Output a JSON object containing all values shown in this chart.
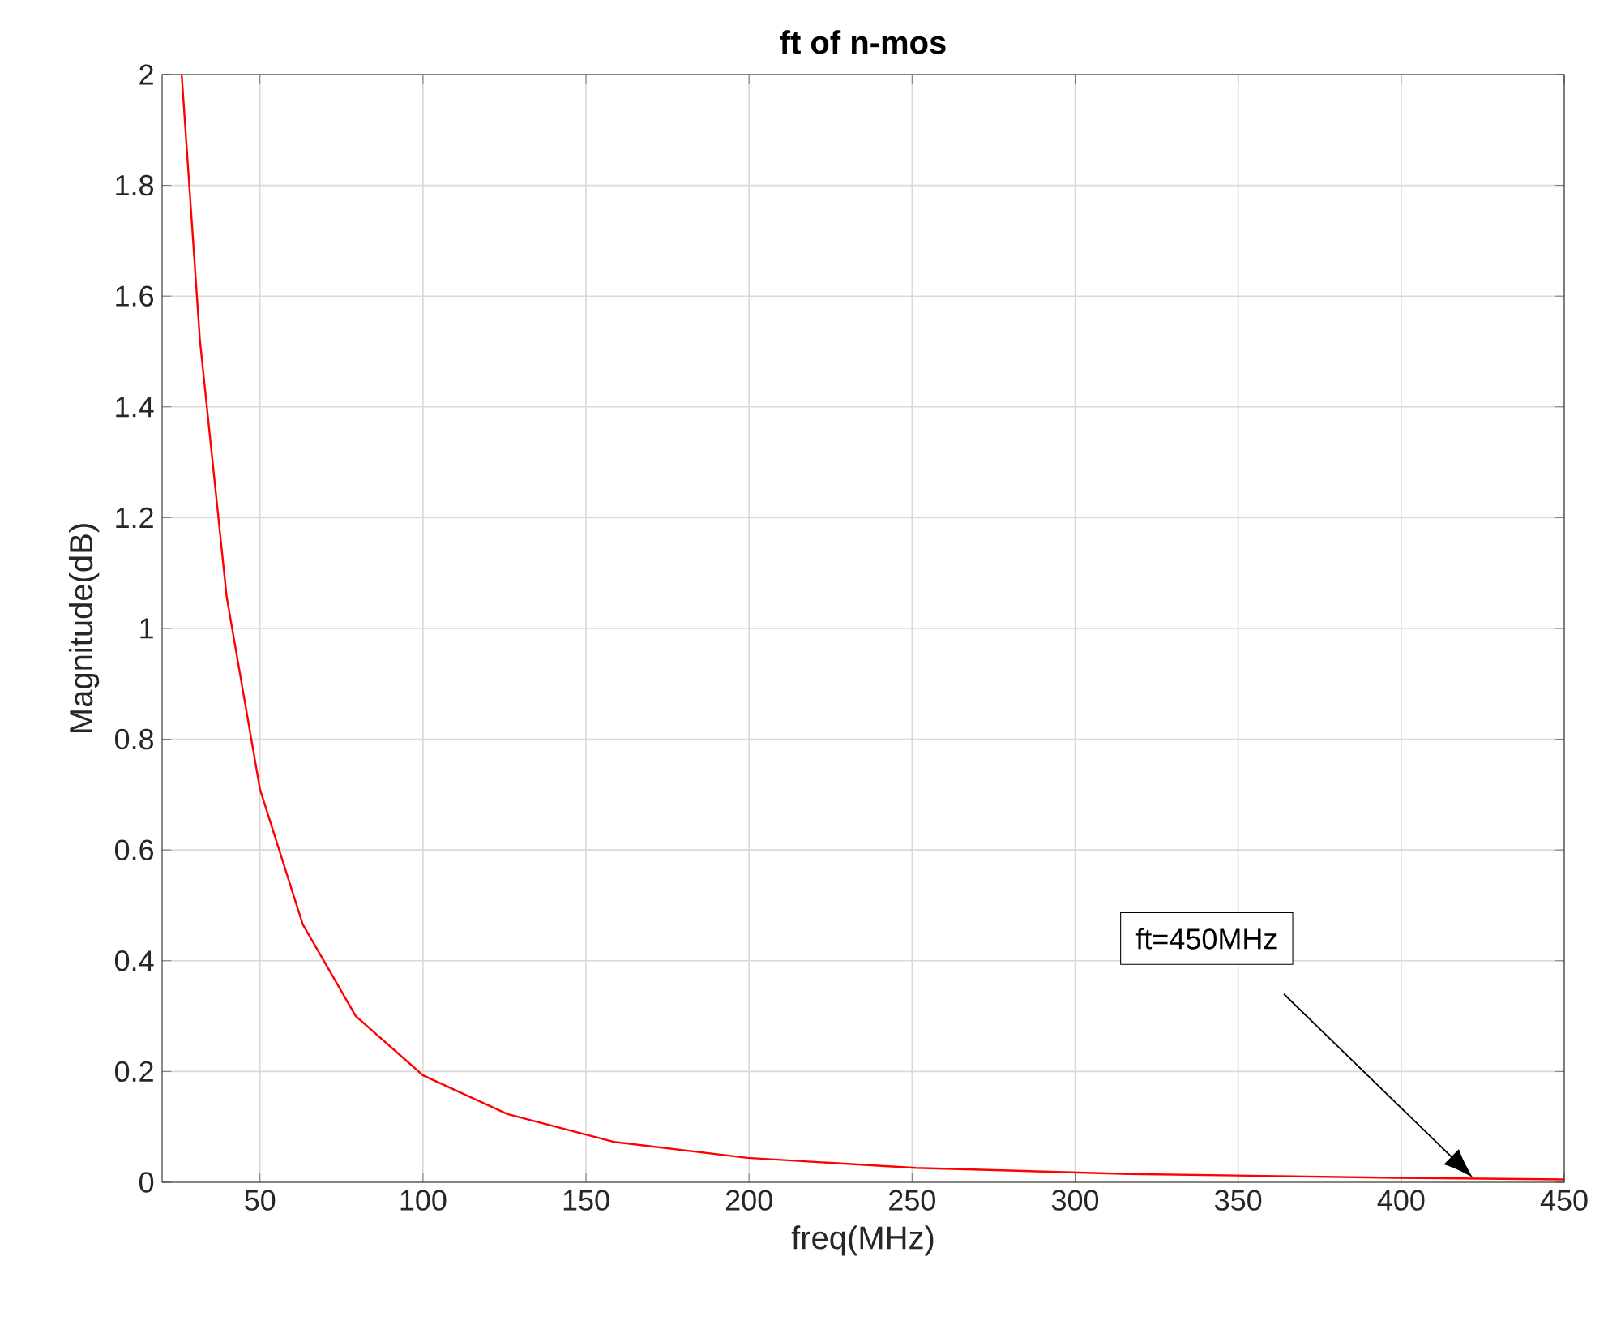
{
  "chart_data": {
    "type": "line",
    "title": "ft of n-mos",
    "xlabel": "freq(MHz)",
    "ylabel": "Magnitude(dB)",
    "x": [
      26,
      31.6,
      39.8,
      50,
      63.1,
      79.4,
      100,
      125.9,
      158.5,
      199.5,
      251.2,
      316.2,
      398.1,
      450
    ],
    "series": [
      {
        "color": "#ff0000",
        "values": [
          2.0,
          1.52,
          1.057,
          0.71,
          0.466,
          0.3,
          0.193,
          0.123,
          0.073,
          0.044,
          0.026,
          0.015,
          0.008,
          0.005
        ]
      }
    ],
    "xlim": [
      20,
      450
    ],
    "ylim": [
      0,
      2
    ],
    "xticks": [
      50,
      100,
      150,
      200,
      250,
      300,
      350,
      400,
      450
    ],
    "yticks": [
      0,
      0.2,
      0.4,
      0.6,
      0.8,
      1,
      1.2,
      1.4,
      1.6,
      1.8,
      2
    ],
    "grid": true,
    "marker": "none",
    "line_style": "solid",
    "annotations": [
      "ft=450MHz"
    ]
  }
}
